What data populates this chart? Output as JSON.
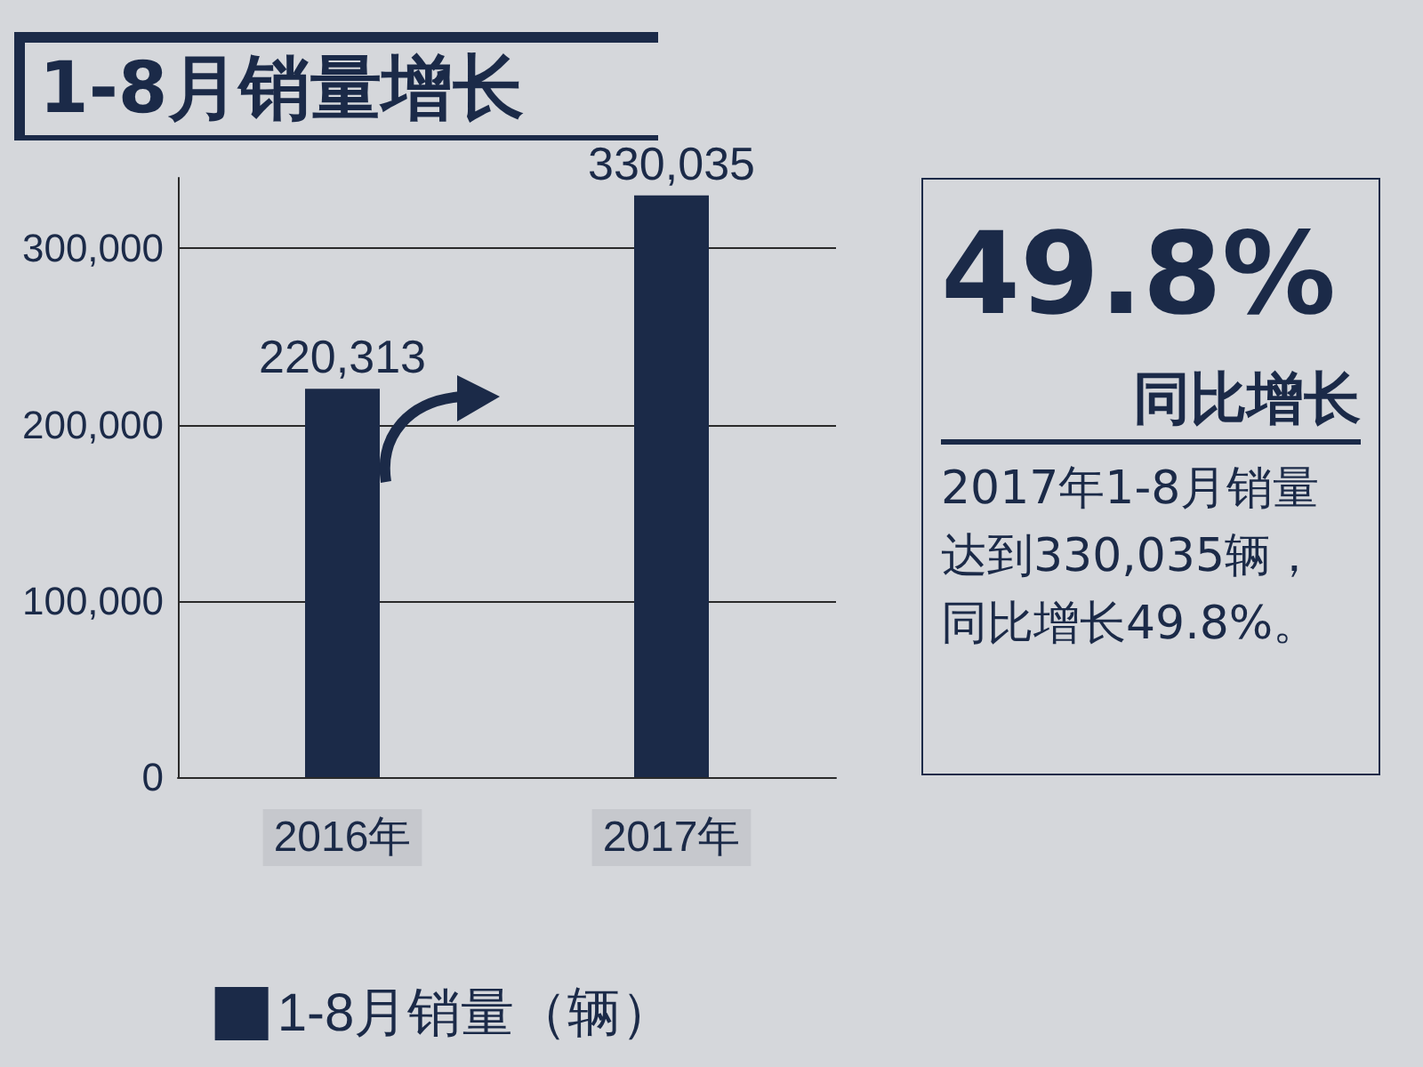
{
  "chart_data": {
    "type": "bar",
    "title": "1-8月销量增长",
    "categories": [
      "2016年",
      "2017年"
    ],
    "series": [
      {
        "name": "1-8月销量（辆）",
        "color": "#1b2a48",
        "values": [
          220313,
          330035
        ],
        "value_labels": [
          "220,313",
          "330,035"
        ]
      }
    ],
    "ylim": [
      0,
      340000
    ],
    "yticks": [
      0,
      {
        "value": 100000,
        "label": "100,000"
      },
      {
        "value": 200000,
        "label": "200,000"
      },
      {
        "value": 300000,
        "label": "300,000"
      }
    ],
    "grid": "y",
    "legend": "bottom",
    "annotations": [
      "49.8%",
      "同比增长",
      "2017年1-8月销量达到330,035辆，同比增长49.8%。"
    ]
  }
}
